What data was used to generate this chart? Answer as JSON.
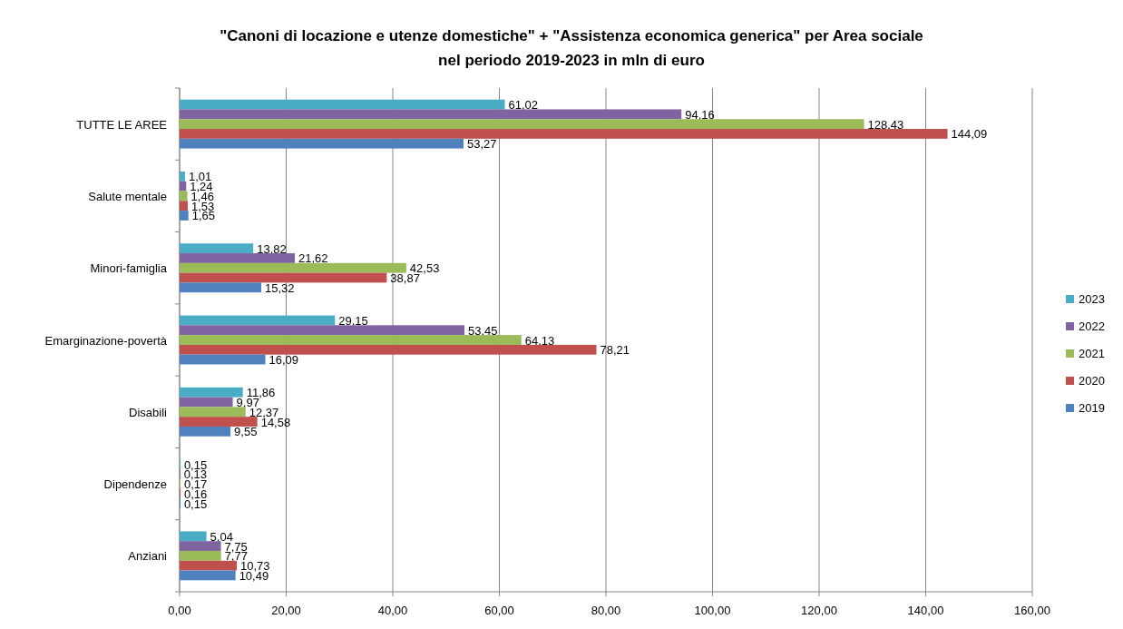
{
  "chart_data": {
    "type": "bar",
    "orientation": "horizontal",
    "title": "\"Canoni di locazione e utenze domestiche\" + \"Assistenza economica generica\" per Area sociale nel periodo 2019-2023 in mln di euro",
    "categories": [
      "TUTTE LE AREE",
      "Salute mentale",
      "Minori-famiglia",
      "Emarginazione-povertà",
      "Disabili",
      "Dipendenze",
      "Anziani"
    ],
    "series": [
      {
        "name": "2023",
        "color": "#4bacc6",
        "values": [
          61.02,
          1.01,
          13.82,
          29.15,
          11.86,
          0.15,
          5.04
        ],
        "value_labels": [
          "61,02",
          "1,01",
          "13,82",
          "29,15",
          "11,86",
          "0,15",
          "5,04"
        ]
      },
      {
        "name": "2022",
        "color": "#8064a2",
        "values": [
          94.16,
          1.24,
          21.62,
          53.45,
          9.97,
          0.13,
          7.75
        ],
        "value_labels": [
          "94,16",
          "1,24",
          "21,62",
          "53,45",
          "9,97",
          "0,13",
          "7,75"
        ]
      },
      {
        "name": "2021",
        "color": "#9bbb59",
        "values": [
          128.43,
          1.46,
          42.53,
          64.13,
          12.37,
          0.17,
          7.77
        ],
        "value_labels": [
          "128,43",
          "1,46",
          "42,53",
          "64,13",
          "12,37",
          "0,17",
          "7,77"
        ]
      },
      {
        "name": "2020",
        "color": "#c0504d",
        "values": [
          144.09,
          1.53,
          38.87,
          78.21,
          14.58,
          0.16,
          10.73
        ],
        "value_labels": [
          "144,09",
          "1,53",
          "38,87",
          "78,21",
          "14,58",
          "0,16",
          "10,73"
        ]
      },
      {
        "name": "2019",
        "color": "#4f81bd",
        "values": [
          53.27,
          1.65,
          15.32,
          16.09,
          9.55,
          0.15,
          10.49
        ],
        "value_labels": [
          "53,27",
          "1,65",
          "15,32",
          "16,09",
          "9,55",
          "0,15",
          "10,49"
        ]
      }
    ],
    "xlim": [
      0,
      160
    ],
    "xticks": [
      {
        "value": 0,
        "label": "0,00"
      },
      {
        "value": 20,
        "label": "20,00"
      },
      {
        "value": 40,
        "label": "40,00"
      },
      {
        "value": 60,
        "label": "60,00"
      },
      {
        "value": 80,
        "label": "80,00"
      },
      {
        "value": 100,
        "label": "100,00"
      },
      {
        "value": 120,
        "label": "120,00"
      },
      {
        "value": 140,
        "label": "140,00"
      },
      {
        "value": 160,
        "label": "160,00"
      }
    ],
    "grid": "x",
    "legend": "right"
  }
}
